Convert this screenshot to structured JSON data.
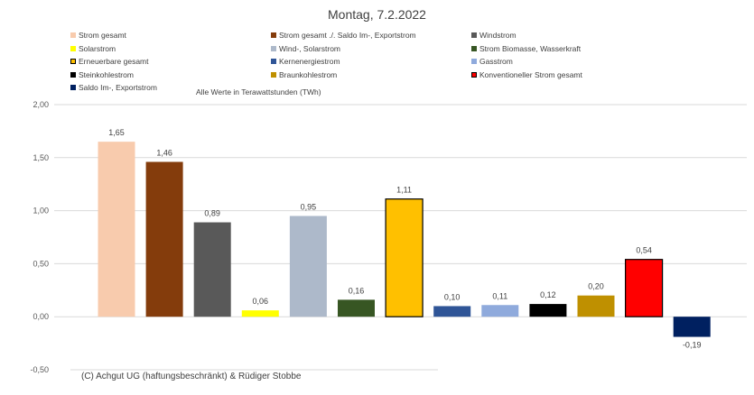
{
  "chart_data": {
    "type": "bar",
    "title": "Montag, 7.2.2022",
    "unit_note": "Alle Werte in Terawattstunden (TWh)",
    "copyright": "(C) Achgut UG (haftungsbeschränkt) & Rüdiger Stobbe",
    "ylim": [
      -0.5,
      2.0
    ],
    "yticks": [
      "2,00",
      "1,50",
      "1,00",
      "0,50",
      "0,00",
      "-0,50"
    ],
    "ytick_values": [
      2.0,
      1.5,
      1.0,
      0.5,
      0.0,
      -0.5
    ],
    "grid": true,
    "legend_position": "top",
    "categories": [
      "Strom gesamt",
      "Strom gesamt ./. Saldo Im-, Exportstrom",
      "Windstrom",
      "Solarstrom",
      "Wind-, Solarstrom",
      "Strom Biomasse, Wasserkraft",
      "Erneuerbare gesamt",
      "Kernenergiestrom",
      "Gasstrom",
      "Steinkohlestrom",
      "Braunkohlestrom",
      "Konventioneller Strom gesamt",
      "Saldo Im-, Exportstrom"
    ],
    "values": [
      1.65,
      1.46,
      0.89,
      0.06,
      0.95,
      0.16,
      1.11,
      0.1,
      0.11,
      0.12,
      0.2,
      0.54,
      -0.19
    ],
    "value_labels": [
      "1,65",
      "1,46",
      "0,89",
      "0,06",
      "0,95",
      "0,16",
      "1,11",
      "0,10",
      "0,11",
      "0,12",
      "0,20",
      "0,54",
      "-0,19"
    ],
    "colors": [
      "#f8cbad",
      "#843c0c",
      "#595959",
      "#ffff00",
      "#adb9ca",
      "#375623",
      "#ffc000",
      "#2f5597",
      "#8faadc",
      "#000000",
      "#bf9000",
      "#ff0000",
      "#002060"
    ],
    "outlined": [
      false,
      false,
      false,
      false,
      false,
      false,
      true,
      false,
      false,
      false,
      false,
      true,
      false
    ]
  }
}
